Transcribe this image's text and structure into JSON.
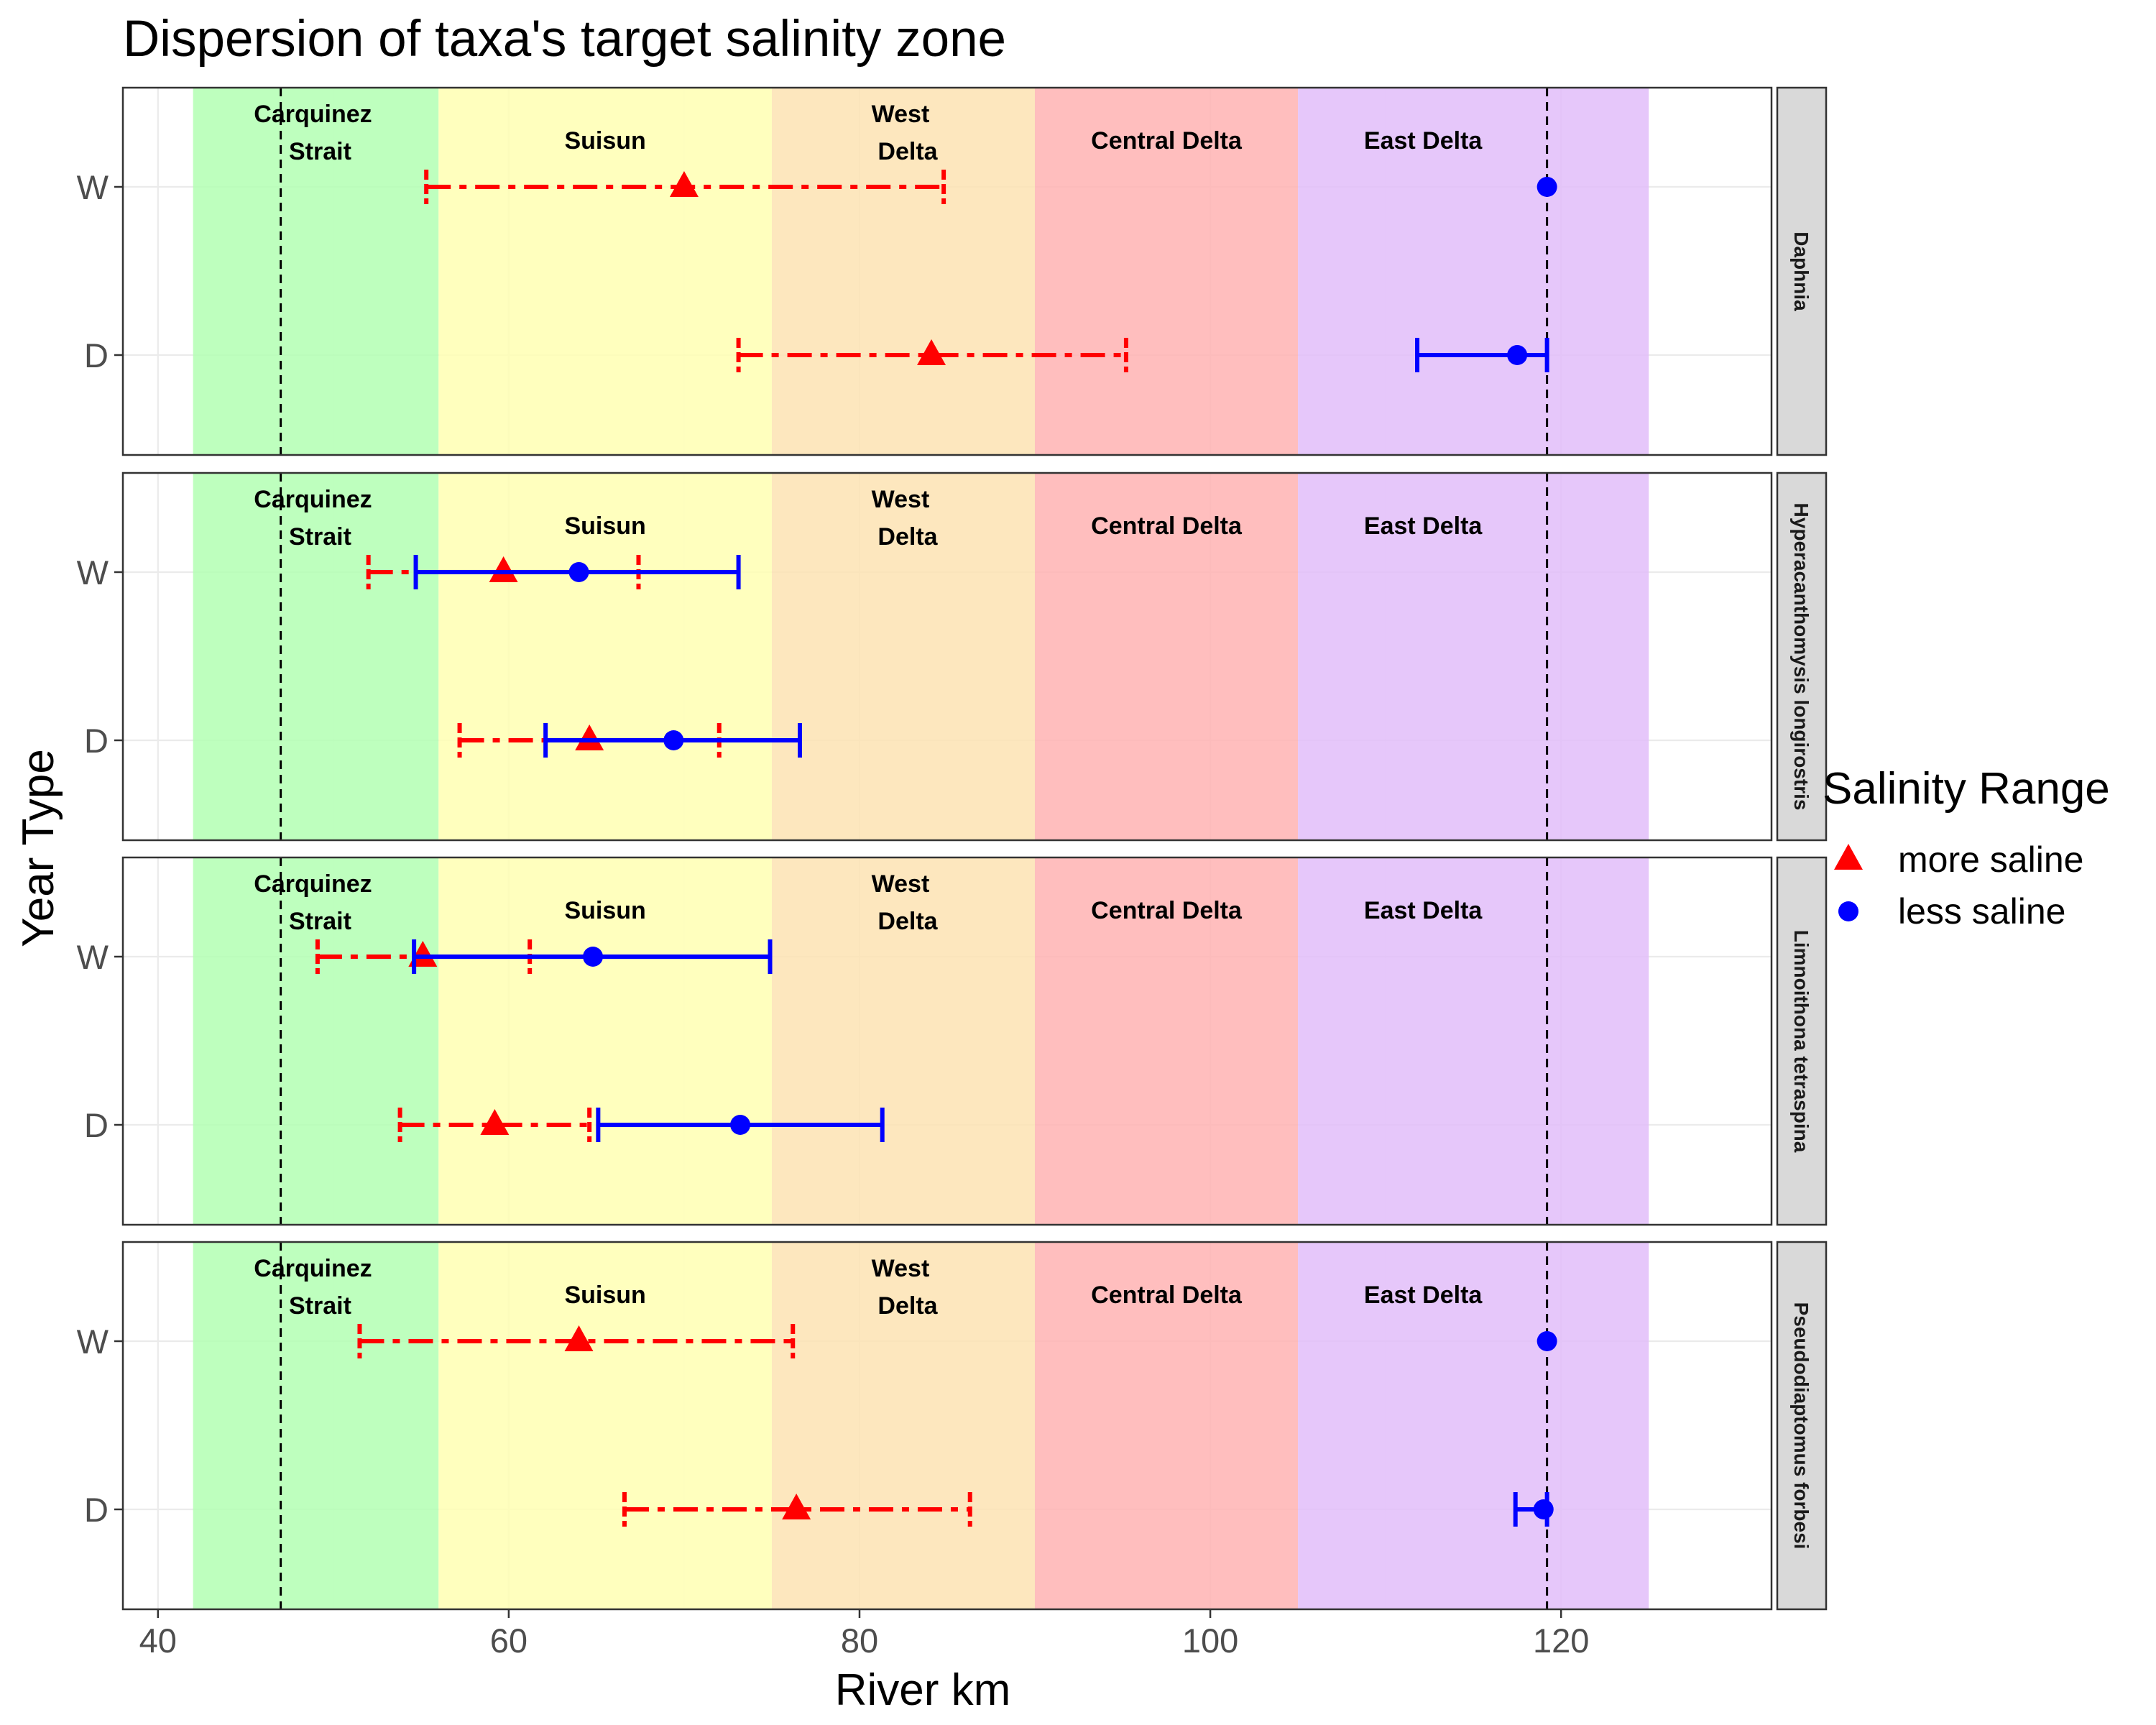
{
  "chart_data": {
    "type": "errorbar",
    "title": "Dispersion of taxa's target salinity zone",
    "xlabel": "River km",
    "ylabel": "Year Type",
    "xlim": [
      38,
      132
    ],
    "x_ticks": [
      40,
      60,
      80,
      100,
      120
    ],
    "y_categories": [
      "W",
      "D"
    ],
    "grid": true,
    "legend": {
      "title": "Salinity Range",
      "position": "right",
      "entries": [
        {
          "label": "more saline",
          "series": "more_saline"
        },
        {
          "label": "less saline",
          "series": "less_saline"
        }
      ]
    },
    "vlines": [
      47,
      119.2
    ],
    "zones": [
      {
        "label": "Carquinez\nStrait",
        "from": 42,
        "to": 56,
        "color": "#b3ffb3"
      },
      {
        "label": "Suisun",
        "from": 56,
        "to": 75,
        "color": "#ffffb3"
      },
      {
        "label": "West\nDelta",
        "from": 75,
        "to": 90,
        "color": "#fde3b3"
      },
      {
        "label": "Central Delta",
        "from": 90,
        "to": 105,
        "color": "#ffb3b3"
      },
      {
        "label": "East Delta",
        "from": 105,
        "to": 125,
        "color": "#e2bdf9"
      }
    ],
    "series_styles": {
      "more_saline": {
        "color": "#ff0000",
        "shape": "triangle",
        "dash": "dotdash"
      },
      "less_saline": {
        "color": "#0000ff",
        "shape": "circle",
        "dash": "solid"
      }
    },
    "panels": [
      {
        "taxon": "Daphnia",
        "more_saline": {
          "W": {
            "mean": 70.0,
            "low": 55.3,
            "high": 84.8
          },
          "D": {
            "mean": 84.1,
            "low": 73.1,
            "high": 95.2
          }
        },
        "less_saline": {
          "W": {
            "mean": 119.2,
            "low": 119.2,
            "high": 119.2
          },
          "D": {
            "mean": 117.5,
            "low": 111.8,
            "high": 119.2
          }
        }
      },
      {
        "taxon": "Hyperacanthomysis longirostris",
        "more_saline": {
          "W": {
            "mean": 59.7,
            "low": 52.0,
            "high": 67.4
          },
          "D": {
            "mean": 64.6,
            "low": 57.2,
            "high": 72.0
          }
        },
        "less_saline": {
          "W": {
            "mean": 64.0,
            "low": 54.7,
            "high": 73.1
          },
          "D": {
            "mean": 69.4,
            "low": 62.1,
            "high": 76.6
          }
        }
      },
      {
        "taxon": "Limnoithona tetraspina",
        "more_saline": {
          "W": {
            "mean": 55.1,
            "low": 49.1,
            "high": 61.2
          },
          "D": {
            "mean": 59.2,
            "low": 53.8,
            "high": 64.6
          }
        },
        "less_saline": {
          "W": {
            "mean": 64.8,
            "low": 54.6,
            "high": 74.9
          },
          "D": {
            "mean": 73.2,
            "low": 65.1,
            "high": 81.3
          }
        }
      },
      {
        "taxon": "Pseudodiaptomus forbesi",
        "more_saline": {
          "W": {
            "mean": 64.0,
            "low": 51.5,
            "high": 76.2
          },
          "D": {
            "mean": 76.4,
            "low": 66.6,
            "high": 86.3
          }
        },
        "less_saline": {
          "W": {
            "mean": 119.2,
            "low": 119.2,
            "high": 119.2
          },
          "D": {
            "mean": 119.0,
            "low": 117.4,
            "high": 119.2
          }
        }
      }
    ]
  }
}
